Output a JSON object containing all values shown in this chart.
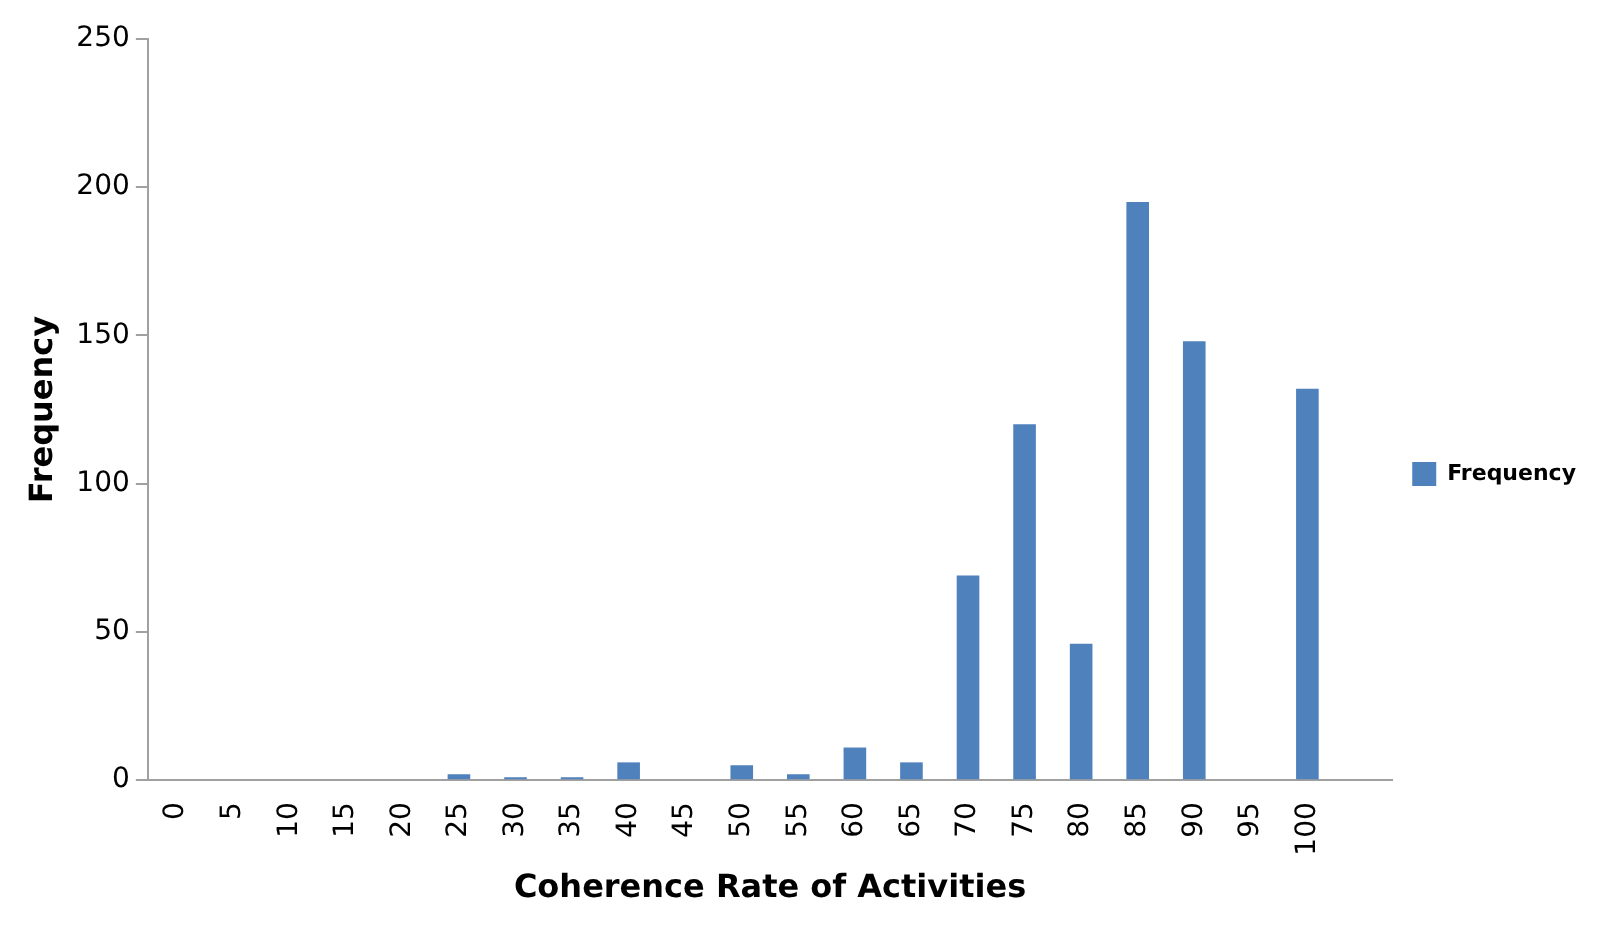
{
  "chart_data": {
    "type": "bar",
    "xlabel": "Coherence Rate of Activities",
    "ylabel": "Frequency",
    "categories": [
      "0",
      "5",
      "10",
      "15",
      "20",
      "25",
      "30",
      "35",
      "40",
      "45",
      "50",
      "55",
      "60",
      "65",
      "70",
      "75",
      "80",
      "85",
      "90",
      "95",
      "100",
      null
    ],
    "series": [
      {
        "name": "Frequency",
        "color": "#4f81bd",
        "values": [
          0,
          0,
          0,
          0,
          0,
          2,
          1,
          1,
          6,
          0,
          5,
          2,
          11,
          6,
          69,
          120,
          46,
          195,
          148,
          0,
          132,
          null
        ]
      }
    ],
    "ylim": [
      0,
      250
    ],
    "yticks": [
      0,
      50,
      100,
      150,
      200,
      250
    ],
    "grid": false,
    "legend": "right"
  }
}
